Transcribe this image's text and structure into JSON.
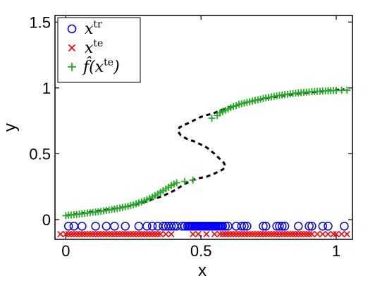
{
  "chart_data": {
    "type": "scatter",
    "xlabel": "x",
    "ylabel": "y",
    "xlim": [
      -0.04,
      1.06
    ],
    "ylim": [
      -0.15,
      1.55
    ],
    "x_ticks": [
      0,
      0.5,
      1
    ],
    "x_tick_labels": [
      "0",
      "0.5",
      "1"
    ],
    "y_ticks": [
      0,
      0.5,
      1,
      1.5
    ],
    "y_tick_labels": [
      "0",
      "0.5",
      "1",
      "1.5"
    ],
    "grid": false,
    "legend": {
      "placement": "top-left",
      "entries": [
        {
          "base": "x",
          "sup": "tr",
          "marker": "circle",
          "color": "#0000ff"
        },
        {
          "base": "x",
          "sup": "te",
          "marker": "x",
          "color": "#ff0000"
        },
        {
          "base": "f̂(x",
          "sup": "te",
          "suffix": ")",
          "marker": "plus",
          "color": "#22aa22"
        }
      ]
    },
    "series": [
      {
        "kind": "curve",
        "style": "dashed",
        "color": "#000000",
        "points": [
          [
            0.0,
            0.03
          ],
          [
            0.05,
            0.045
          ],
          [
            0.1,
            0.06
          ],
          [
            0.15,
            0.075
          ],
          [
            0.2,
            0.09
          ],
          [
            0.25,
            0.11
          ],
          [
            0.3,
            0.14
          ],
          [
            0.33,
            0.16
          ],
          [
            0.36,
            0.18
          ],
          [
            0.4,
            0.22
          ],
          [
            0.44,
            0.27
          ],
          [
            0.48,
            0.31
          ],
          [
            0.52,
            0.325
          ],
          [
            0.55,
            0.35
          ],
          [
            0.58,
            0.38
          ],
          [
            0.59,
            0.4
          ],
          [
            0.585,
            0.43
          ],
          [
            0.57,
            0.46
          ],
          [
            0.55,
            0.5
          ],
          [
            0.52,
            0.55
          ],
          [
            0.48,
            0.59
          ],
          [
            0.45,
            0.61
          ],
          [
            0.425,
            0.64
          ],
          [
            0.415,
            0.67
          ],
          [
            0.42,
            0.7
          ],
          [
            0.45,
            0.73
          ],
          [
            0.5,
            0.78
          ],
          [
            0.55,
            0.81
          ],
          [
            0.6,
            0.85
          ],
          [
            0.65,
            0.88
          ],
          [
            0.7,
            0.905
          ],
          [
            0.75,
            0.925
          ],
          [
            0.8,
            0.94
          ],
          [
            0.85,
            0.955
          ],
          [
            0.9,
            0.965
          ],
          [
            0.95,
            0.975
          ],
          [
            1.0,
            0.985
          ],
          [
            1.03,
            0.99
          ]
        ]
      },
      {
        "kind": "scatter",
        "marker": "circle",
        "color": "#0000ff",
        "y": -0.05,
        "x": [
          0.01,
          0.03,
          0.06,
          0.11,
          0.15,
          0.18,
          0.22,
          0.27,
          0.3,
          0.32,
          0.34,
          0.36,
          0.37,
          0.38,
          0.39,
          0.4,
          0.41,
          0.43,
          0.44,
          0.45,
          0.455,
          0.46,
          0.465,
          0.47,
          0.475,
          0.48,
          0.485,
          0.49,
          0.495,
          0.5,
          0.505,
          0.51,
          0.515,
          0.52,
          0.525,
          0.53,
          0.535,
          0.54,
          0.545,
          0.55,
          0.555,
          0.56,
          0.565,
          0.57,
          0.575,
          0.58,
          0.59,
          0.6,
          0.63,
          0.65,
          0.66,
          0.67,
          0.73,
          0.74,
          0.78,
          0.79,
          0.8,
          0.81,
          0.86,
          0.9,
          0.91,
          0.95,
          0.97,
          1.03
        ]
      },
      {
        "kind": "scatter",
        "marker": "x",
        "color": "#ff0000",
        "y": -0.11,
        "x": [
          -0.02,
          0.0,
          0.01,
          0.02,
          0.03,
          0.04,
          0.05,
          0.06,
          0.07,
          0.08,
          0.09,
          0.1,
          0.11,
          0.12,
          0.13,
          0.14,
          0.15,
          0.16,
          0.17,
          0.18,
          0.19,
          0.2,
          0.21,
          0.22,
          0.23,
          0.24,
          0.25,
          0.26,
          0.27,
          0.28,
          0.29,
          0.3,
          0.31,
          0.32,
          0.33,
          0.34,
          0.35,
          0.37,
          0.39,
          0.47,
          0.49,
          0.52,
          0.55,
          0.57,
          0.58,
          0.59,
          0.6,
          0.61,
          0.62,
          0.63,
          0.64,
          0.65,
          0.66,
          0.67,
          0.68,
          0.69,
          0.7,
          0.71,
          0.72,
          0.73,
          0.74,
          0.75,
          0.76,
          0.77,
          0.78,
          0.79,
          0.8,
          0.81,
          0.82,
          0.83,
          0.84,
          0.85,
          0.86,
          0.87,
          0.88,
          0.89,
          0.9,
          0.91,
          0.93,
          0.95,
          0.97,
          0.99,
          1.0,
          1.02,
          1.04
        ]
      },
      {
        "kind": "scatter",
        "marker": "plus",
        "color": "#22aa22",
        "points": [
          [
            0.0,
            0.03
          ],
          [
            0.01,
            0.033
          ],
          [
            0.02,
            0.035
          ],
          [
            0.03,
            0.037
          ],
          [
            0.04,
            0.04
          ],
          [
            0.05,
            0.042
          ],
          [
            0.06,
            0.045
          ],
          [
            0.07,
            0.047
          ],
          [
            0.08,
            0.05
          ],
          [
            0.09,
            0.052
          ],
          [
            0.1,
            0.055
          ],
          [
            0.11,
            0.057
          ],
          [
            0.12,
            0.06
          ],
          [
            0.13,
            0.063
          ],
          [
            0.14,
            0.066
          ],
          [
            0.15,
            0.07
          ],
          [
            0.16,
            0.073
          ],
          [
            0.17,
            0.077
          ],
          [
            0.18,
            0.08
          ],
          [
            0.19,
            0.084
          ],
          [
            0.2,
            0.088
          ],
          [
            0.21,
            0.092
          ],
          [
            0.22,
            0.097
          ],
          [
            0.23,
            0.102
          ],
          [
            0.24,
            0.107
          ],
          [
            0.25,
            0.113
          ],
          [
            0.26,
            0.12
          ],
          [
            0.27,
            0.127
          ],
          [
            0.28,
            0.135
          ],
          [
            0.29,
            0.143
          ],
          [
            0.3,
            0.152
          ],
          [
            0.31,
            0.162
          ],
          [
            0.32,
            0.172
          ],
          [
            0.33,
            0.183
          ],
          [
            0.34,
            0.195
          ],
          [
            0.35,
            0.208
          ],
          [
            0.36,
            0.22
          ],
          [
            0.37,
            0.233
          ],
          [
            0.38,
            0.246
          ],
          [
            0.39,
            0.26
          ],
          [
            0.4,
            0.27
          ],
          [
            0.41,
            0.28
          ],
          [
            0.44,
            0.29
          ],
          [
            0.47,
            0.3
          ],
          [
            0.54,
            0.77
          ],
          [
            0.56,
            0.79
          ],
          [
            0.57,
            0.81
          ],
          [
            0.58,
            0.82
          ],
          [
            0.59,
            0.83
          ],
          [
            0.6,
            0.84
          ],
          [
            0.61,
            0.85
          ],
          [
            0.62,
            0.86
          ],
          [
            0.63,
            0.865
          ],
          [
            0.64,
            0.875
          ],
          [
            0.65,
            0.88
          ],
          [
            0.66,
            0.885
          ],
          [
            0.67,
            0.89
          ],
          [
            0.68,
            0.895
          ],
          [
            0.69,
            0.9
          ],
          [
            0.7,
            0.905
          ],
          [
            0.71,
            0.91
          ],
          [
            0.72,
            0.915
          ],
          [
            0.73,
            0.92
          ],
          [
            0.74,
            0.925
          ],
          [
            0.75,
            0.928
          ],
          [
            0.76,
            0.932
          ],
          [
            0.77,
            0.936
          ],
          [
            0.78,
            0.94
          ],
          [
            0.79,
            0.943
          ],
          [
            0.8,
            0.946
          ],
          [
            0.81,
            0.949
          ],
          [
            0.82,
            0.952
          ],
          [
            0.83,
            0.955
          ],
          [
            0.84,
            0.957
          ],
          [
            0.85,
            0.96
          ],
          [
            0.86,
            0.962
          ],
          [
            0.87,
            0.964
          ],
          [
            0.88,
            0.966
          ],
          [
            0.89,
            0.968
          ],
          [
            0.9,
            0.97
          ],
          [
            0.91,
            0.972
          ],
          [
            0.92,
            0.973
          ],
          [
            0.93,
            0.974
          ],
          [
            0.94,
            0.975
          ],
          [
            0.95,
            0.976
          ],
          [
            0.96,
            0.977
          ],
          [
            0.97,
            0.978
          ],
          [
            0.98,
            0.979
          ],
          [
            0.99,
            0.98
          ],
          [
            1.0,
            0.98
          ],
          [
            1.02,
            0.982
          ],
          [
            1.04,
            0.983
          ]
        ]
      }
    ]
  }
}
